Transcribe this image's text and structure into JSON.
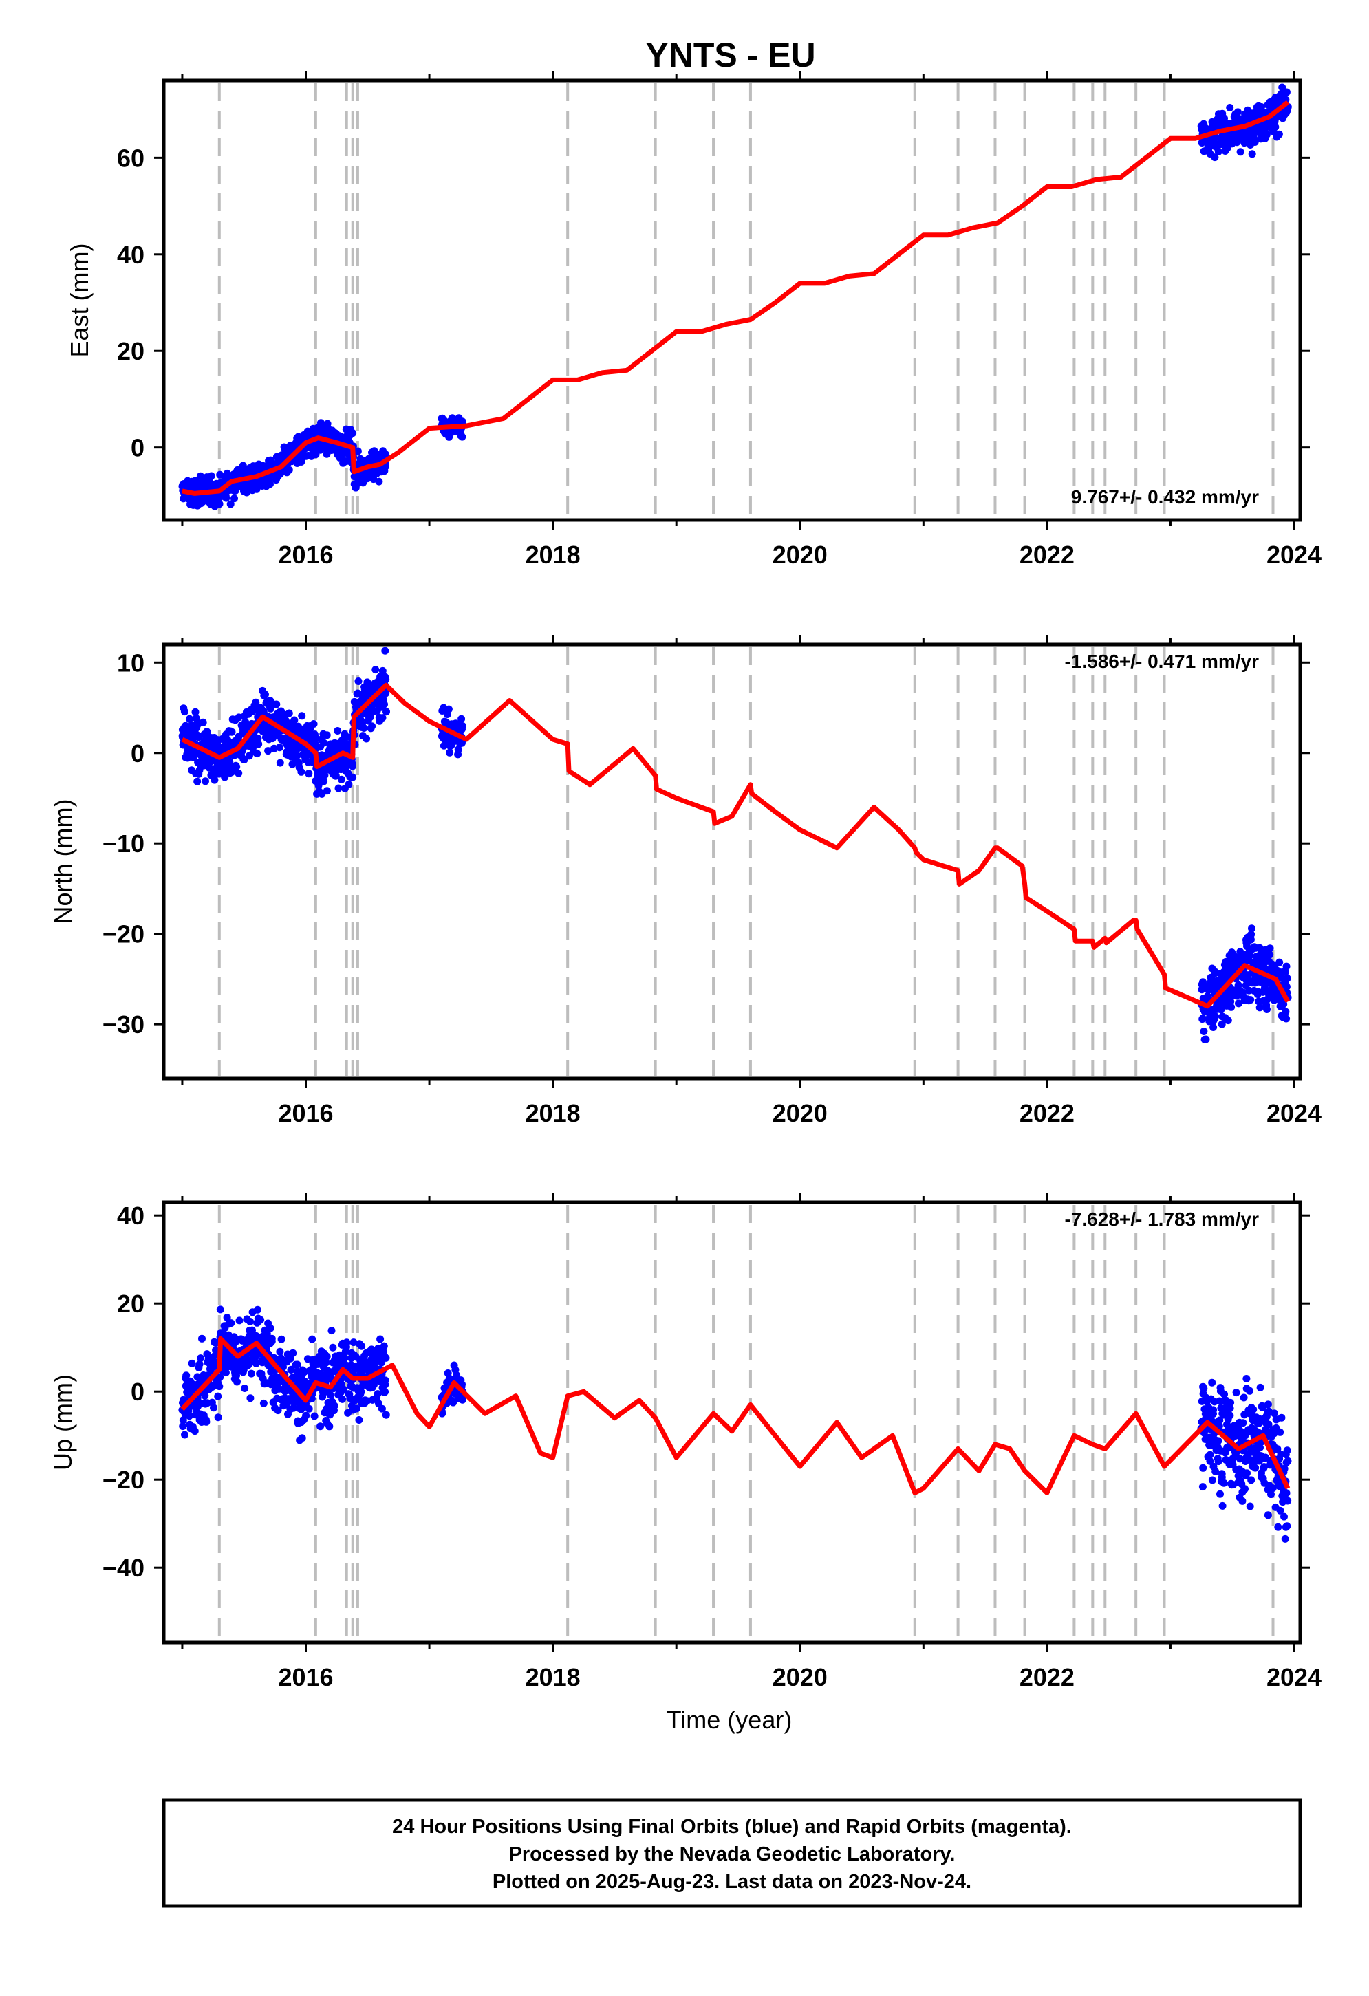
{
  "chart_data": [
    {
      "type": "scatter",
      "title": "YNTS - EU",
      "xlabel": "",
      "ylabel": "East (mm)",
      "xlim": [
        2014.85,
        2024.05
      ],
      "ylim": [
        -15,
        76
      ],
      "xticks": [
        2016,
        2018,
        2020,
        2022,
        2024
      ],
      "yticks": [
        0,
        20,
        40,
        60
      ],
      "rate_label": "9.767+/- 0.432 mm/yr",
      "rate_position": "bottom-right",
      "model_color": "#ff0000",
      "obs_color": "#0000ff",
      "model_line": {
        "x": [
          2015.0,
          2015.1,
          2015.3,
          2015.4,
          2015.6,
          2015.8,
          2016.0,
          2016.1,
          2016.25,
          2016.38,
          2016.39,
          2016.5,
          2016.6,
          2016.75,
          2017.0,
          2017.3,
          2017.6,
          2017.8,
          2018.0,
          2018.2,
          2018.4,
          2018.6,
          2018.8,
          2019.0,
          2019.2,
          2019.4,
          2019.6,
          2019.8,
          2020.0,
          2020.2,
          2020.4,
          2020.6,
          2020.8,
          2021.0,
          2021.2,
          2021.4,
          2021.6,
          2021.8,
          2022.0,
          2022.2,
          2022.4,
          2022.6,
          2022.8,
          2023.0,
          2023.2,
          2023.4,
          2023.6,
          2023.8,
          2023.95
        ],
        "y": [
          -9,
          -9.5,
          -9,
          -7,
          -6,
          -4,
          1,
          2,
          1,
          0,
          -5,
          -4,
          -3.5,
          -1,
          4,
          4.5,
          6,
          10,
          14,
          14,
          15.5,
          16,
          20,
          24,
          24,
          25.5,
          26.5,
          30,
          34,
          34,
          35.5,
          36,
          40,
          44,
          44,
          45.5,
          46.5,
          50,
          54,
          54,
          55.5,
          56,
          60,
          64,
          64,
          65.5,
          66.5,
          68.5,
          71.5
        ]
      },
      "obs_clusters": [
        {
          "x_range": [
            2015.0,
            2016.65
          ],
          "approx_center": [
            2015.8,
            -3
          ],
          "spread_mm": 3
        },
        {
          "x_range": [
            2017.1,
            2017.27
          ],
          "approx_center": [
            2017.2,
            4
          ],
          "spread_mm": 2
        },
        {
          "x_range": [
            2023.25,
            2023.95
          ],
          "approx_center": [
            2023.6,
            66
          ],
          "spread_mm": 4
        }
      ],
      "offset_lines_x": [
        2015.3,
        2016.08,
        2016.33,
        2016.38,
        2016.42,
        2018.12,
        2018.83,
        2019.3,
        2019.6,
        2020.93,
        2021.28,
        2021.58,
        2021.82,
        2022.22,
        2022.37,
        2022.47,
        2022.72,
        2022.95,
        2023.83
      ]
    },
    {
      "type": "scatter",
      "title": "",
      "xlabel": "",
      "ylabel": "North (mm)",
      "xlim": [
        2014.85,
        2024.05
      ],
      "ylim": [
        -36,
        12
      ],
      "xticks": [
        2016,
        2018,
        2020,
        2022,
        2024
      ],
      "yticks": [
        -30,
        -20,
        -10,
        0,
        10
      ],
      "rate_label": "-1.586+/- 0.471 mm/yr",
      "rate_position": "top-right",
      "model_color": "#ff0000",
      "obs_color": "#0000ff",
      "model_line": {
        "x": [
          2015.0,
          2015.3,
          2015.45,
          2015.65,
          2016.0,
          2016.08,
          2016.09,
          2016.3,
          2016.38,
          2016.39,
          2016.5,
          2016.65,
          2016.8,
          2017.0,
          2017.3,
          2017.65,
          2018.0,
          2018.12,
          2018.13,
          2018.3,
          2018.65,
          2018.83,
          2018.84,
          2019.0,
          2019.3,
          2019.31,
          2019.45,
          2019.6,
          2019.61,
          2019.8,
          2020.0,
          2020.3,
          2020.6,
          2020.8,
          2020.93,
          2020.94,
          2021.0,
          2021.28,
          2021.29,
          2021.45,
          2021.58,
          2021.6,
          2021.8,
          2021.82,
          2021.83,
          2022.0,
          2022.22,
          2022.23,
          2022.37,
          2022.38,
          2022.47,
          2022.48,
          2022.7,
          2022.72,
          2022.73,
          2022.95,
          2022.96,
          2023.3,
          2023.6,
          2023.85,
          2023.95
        ],
        "y": [
          1.5,
          -0.5,
          0.5,
          4,
          1,
          0,
          -1.5,
          0,
          -0.5,
          4,
          5.5,
          7.5,
          5.5,
          3.5,
          1.5,
          5.8,
          1.5,
          1.0,
          -2.0,
          -3.5,
          0.5,
          -2.5,
          -4.0,
          -5.0,
          -6.5,
          -7.8,
          -7.0,
          -3.5,
          -4.5,
          -6.5,
          -8.5,
          -10.5,
          -6.0,
          -8.5,
          -10.5,
          -11.0,
          -11.8,
          -13.0,
          -14.5,
          -13.0,
          -10.5,
          -10.5,
          -12.5,
          -14.5,
          -16.0,
          -17.5,
          -19.5,
          -20.8,
          -20.8,
          -21.5,
          -20.5,
          -21.0,
          -18.5,
          -18.5,
          -19.5,
          -24.5,
          -26.0,
          -28.0,
          -23.5,
          -25.0,
          -27.5
        ]
      },
      "obs_clusters": [
        {
          "x_range": [
            2015.0,
            2016.65
          ],
          "approx_center": [
            2015.8,
            2
          ],
          "spread_mm": 3
        },
        {
          "x_range": [
            2017.1,
            2017.27
          ],
          "approx_center": [
            2017.2,
            0
          ],
          "spread_mm": 2
        },
        {
          "x_range": [
            2023.25,
            2023.95
          ],
          "approx_center": [
            2023.6,
            -25
          ],
          "spread_mm": 3.5
        }
      ],
      "offset_lines_x": [
        2015.3,
        2016.08,
        2016.33,
        2016.38,
        2016.42,
        2018.12,
        2018.83,
        2019.3,
        2019.6,
        2020.93,
        2021.28,
        2021.58,
        2021.82,
        2022.22,
        2022.37,
        2022.47,
        2022.72,
        2022.95,
        2023.83
      ]
    },
    {
      "type": "scatter",
      "title": "",
      "xlabel": "Time (year)",
      "ylabel": "Up (mm)",
      "xlim": [
        2014.85,
        2024.05
      ],
      "ylim": [
        -57,
        43
      ],
      "xticks": [
        2016,
        2018,
        2020,
        2022,
        2024
      ],
      "yticks": [
        -40,
        -20,
        0,
        20,
        40
      ],
      "rate_label": "-7.628+/- 1.783 mm/yr",
      "rate_position": "top-right",
      "model_color": "#ff0000",
      "obs_color": "#0000ff",
      "model_line": {
        "x": [
          2015.0,
          2015.3,
          2015.31,
          2015.45,
          2015.6,
          2015.75,
          2016.0,
          2016.08,
          2016.2,
          2016.3,
          2016.38,
          2016.5,
          2016.7,
          2016.9,
          2017.0,
          2017.2,
          2017.45,
          2017.7,
          2017.9,
          2018.0,
          2018.12,
          2018.25,
          2018.5,
          2018.7,
          2018.83,
          2019.0,
          2019.3,
          2019.45,
          2019.6,
          2019.8,
          2020.0,
          2020.3,
          2020.5,
          2020.75,
          2020.93,
          2021.0,
          2021.28,
          2021.45,
          2021.58,
          2021.7,
          2021.82,
          2022.0,
          2022.22,
          2022.37,
          2022.47,
          2022.72,
          2022.95,
          2023.3,
          2023.55,
          2023.75,
          2023.95
        ],
        "y": [
          -4,
          5,
          12,
          8,
          11,
          6,
          -2,
          2,
          1,
          5,
          3,
          3,
          6,
          -5,
          -8,
          2,
          -5,
          -1,
          -14,
          -15,
          -1,
          0,
          -6,
          -2,
          -6,
          -15,
          -5,
          -9,
          -3,
          -10,
          -17,
          -7,
          -15,
          -10,
          -23,
          -22,
          -13,
          -18,
          -12,
          -13,
          -18,
          -23,
          -10,
          -12,
          -13,
          -5,
          -17,
          -7,
          -13,
          -10,
          -22
        ]
      },
      "obs_clusters": [
        {
          "x_range": [
            2015.0,
            2016.65
          ],
          "approx_center": [
            2015.8,
            3
          ],
          "spread_mm": 8
        },
        {
          "x_range": [
            2017.1,
            2017.27
          ],
          "approx_center": [
            2017.2,
            3
          ],
          "spread_mm": 4
        },
        {
          "x_range": [
            2023.25,
            2023.95
          ],
          "approx_center": [
            2023.6,
            -12
          ],
          "spread_mm": 12
        }
      ],
      "offset_lines_x": [
        2015.3,
        2016.08,
        2016.33,
        2016.38,
        2016.42,
        2018.12,
        2018.83,
        2019.3,
        2019.6,
        2020.93,
        2021.28,
        2021.58,
        2021.82,
        2022.22,
        2022.37,
        2022.47,
        2022.72,
        2022.95,
        2023.83
      ]
    }
  ],
  "footer": {
    "line1": "24 Hour Positions Using Final Orbits (blue) and Rapid Orbits (magenta).",
    "line2": "Processed by the Nevada Geodetic Laboratory.",
    "line3": "Plotted on 2025-Aug-23. Last data on 2023-Nov-24."
  }
}
